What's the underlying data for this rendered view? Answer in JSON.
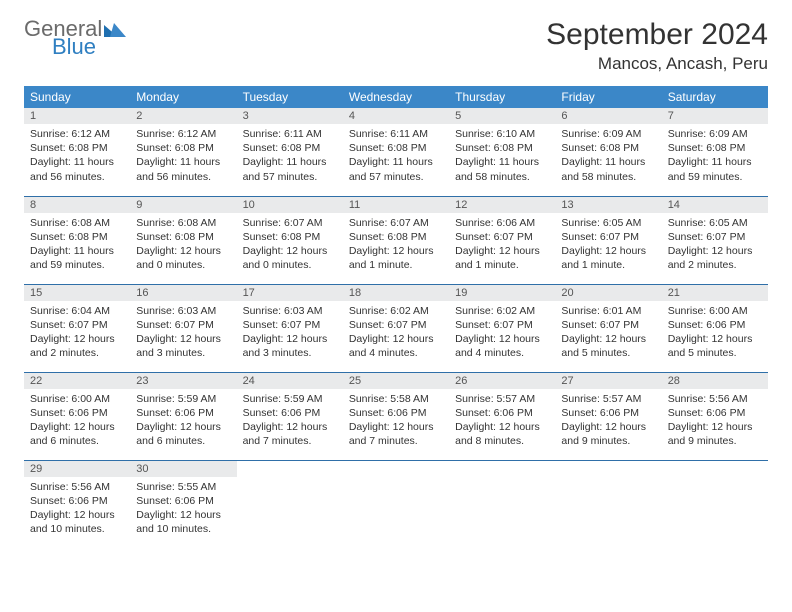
{
  "logo": {
    "general": "General",
    "blue": "Blue"
  },
  "title": "September 2024",
  "location": "Mancos, Ancash, Peru",
  "colors": {
    "header_bg": "#3b87c8",
    "row_divider": "#2f6fa8",
    "daynum_bg": "#e9eaeb",
    "text": "#333333",
    "logo_gray": "#6b6b6b",
    "logo_blue": "#2f7fc1"
  },
  "day_headers": [
    "Sunday",
    "Monday",
    "Tuesday",
    "Wednesday",
    "Thursday",
    "Friday",
    "Saturday"
  ],
  "weeks": [
    [
      {
        "n": "1",
        "sr": "6:12 AM",
        "ss": "6:08 PM",
        "dl": "11 hours and 56 minutes."
      },
      {
        "n": "2",
        "sr": "6:12 AM",
        "ss": "6:08 PM",
        "dl": "11 hours and 56 minutes."
      },
      {
        "n": "3",
        "sr": "6:11 AM",
        "ss": "6:08 PM",
        "dl": "11 hours and 57 minutes."
      },
      {
        "n": "4",
        "sr": "6:11 AM",
        "ss": "6:08 PM",
        "dl": "11 hours and 57 minutes."
      },
      {
        "n": "5",
        "sr": "6:10 AM",
        "ss": "6:08 PM",
        "dl": "11 hours and 58 minutes."
      },
      {
        "n": "6",
        "sr": "6:09 AM",
        "ss": "6:08 PM",
        "dl": "11 hours and 58 minutes."
      },
      {
        "n": "7",
        "sr": "6:09 AM",
        "ss": "6:08 PM",
        "dl": "11 hours and 59 minutes."
      }
    ],
    [
      {
        "n": "8",
        "sr": "6:08 AM",
        "ss": "6:08 PM",
        "dl": "11 hours and 59 minutes."
      },
      {
        "n": "9",
        "sr": "6:08 AM",
        "ss": "6:08 PM",
        "dl": "12 hours and 0 minutes."
      },
      {
        "n": "10",
        "sr": "6:07 AM",
        "ss": "6:08 PM",
        "dl": "12 hours and 0 minutes."
      },
      {
        "n": "11",
        "sr": "6:07 AM",
        "ss": "6:08 PM",
        "dl": "12 hours and 1 minute."
      },
      {
        "n": "12",
        "sr": "6:06 AM",
        "ss": "6:07 PM",
        "dl": "12 hours and 1 minute."
      },
      {
        "n": "13",
        "sr": "6:05 AM",
        "ss": "6:07 PM",
        "dl": "12 hours and 1 minute."
      },
      {
        "n": "14",
        "sr": "6:05 AM",
        "ss": "6:07 PM",
        "dl": "12 hours and 2 minutes."
      }
    ],
    [
      {
        "n": "15",
        "sr": "6:04 AM",
        "ss": "6:07 PM",
        "dl": "12 hours and 2 minutes."
      },
      {
        "n": "16",
        "sr": "6:03 AM",
        "ss": "6:07 PM",
        "dl": "12 hours and 3 minutes."
      },
      {
        "n": "17",
        "sr": "6:03 AM",
        "ss": "6:07 PM",
        "dl": "12 hours and 3 minutes."
      },
      {
        "n": "18",
        "sr": "6:02 AM",
        "ss": "6:07 PM",
        "dl": "12 hours and 4 minutes."
      },
      {
        "n": "19",
        "sr": "6:02 AM",
        "ss": "6:07 PM",
        "dl": "12 hours and 4 minutes."
      },
      {
        "n": "20",
        "sr": "6:01 AM",
        "ss": "6:07 PM",
        "dl": "12 hours and 5 minutes."
      },
      {
        "n": "21",
        "sr": "6:00 AM",
        "ss": "6:06 PM",
        "dl": "12 hours and 5 minutes."
      }
    ],
    [
      {
        "n": "22",
        "sr": "6:00 AM",
        "ss": "6:06 PM",
        "dl": "12 hours and 6 minutes."
      },
      {
        "n": "23",
        "sr": "5:59 AM",
        "ss": "6:06 PM",
        "dl": "12 hours and 6 minutes."
      },
      {
        "n": "24",
        "sr": "5:59 AM",
        "ss": "6:06 PM",
        "dl": "12 hours and 7 minutes."
      },
      {
        "n": "25",
        "sr": "5:58 AM",
        "ss": "6:06 PM",
        "dl": "12 hours and 7 minutes."
      },
      {
        "n": "26",
        "sr": "5:57 AM",
        "ss": "6:06 PM",
        "dl": "12 hours and 8 minutes."
      },
      {
        "n": "27",
        "sr": "5:57 AM",
        "ss": "6:06 PM",
        "dl": "12 hours and 9 minutes."
      },
      {
        "n": "28",
        "sr": "5:56 AM",
        "ss": "6:06 PM",
        "dl": "12 hours and 9 minutes."
      }
    ],
    [
      {
        "n": "29",
        "sr": "5:56 AM",
        "ss": "6:06 PM",
        "dl": "12 hours and 10 minutes."
      },
      {
        "n": "30",
        "sr": "5:55 AM",
        "ss": "6:06 PM",
        "dl": "12 hours and 10 minutes."
      },
      null,
      null,
      null,
      null,
      null
    ]
  ],
  "labels": {
    "sunrise": "Sunrise:",
    "sunset": "Sunset:",
    "daylight": "Daylight:"
  }
}
